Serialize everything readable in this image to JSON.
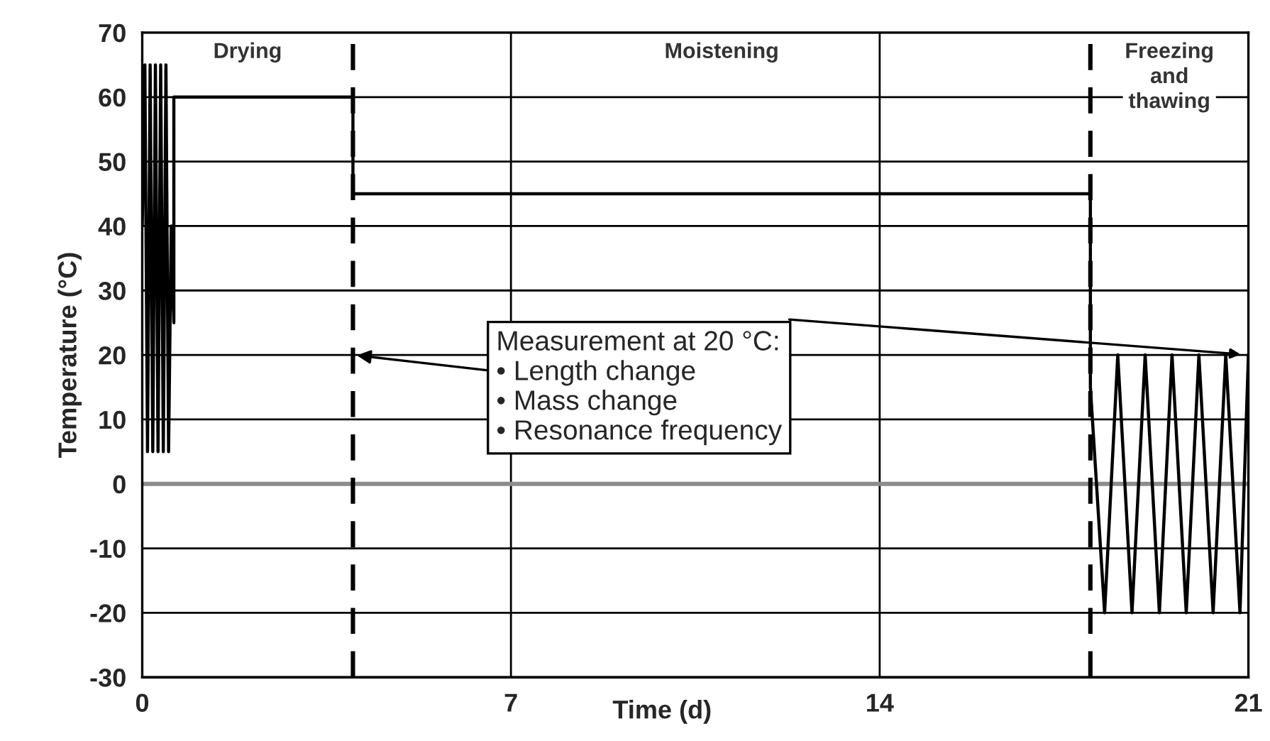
{
  "chart_data": {
    "type": "line",
    "xlabel": "Time (d)",
    "ylabel": "Temperature (°C)",
    "xlim": [
      0,
      21
    ],
    "ylim": [
      -30,
      70
    ],
    "xticks": [
      0,
      7,
      14,
      21
    ],
    "yticks": [
      -30,
      -20,
      -10,
      0,
      10,
      20,
      30,
      40,
      50,
      60,
      70
    ],
    "grid": true,
    "series": [
      {
        "color": "#000000",
        "x": [
          0,
          0.05,
          0.1,
          0.15,
          0.2,
          0.25,
          0.3,
          0.35,
          0.4,
          0.45,
          0.5,
          0.55,
          0.6,
          0.6,
          4,
          4,
          18,
          18,
          18.27,
          18.52,
          18.79,
          19.04,
          19.31,
          19.55,
          19.82,
          20.06,
          20.33,
          20.57,
          20.84,
          21
        ],
        "values": [
          40,
          65,
          5,
          65,
          5,
          65,
          5,
          65,
          5,
          65,
          5,
          40,
          25,
          60,
          60,
          45,
          45,
          15,
          -20,
          20,
          -20,
          20,
          -20,
          20,
          -20,
          20,
          -20,
          20,
          -20,
          20
        ]
      }
    ],
    "ref_lines": [
      {
        "axis": "x",
        "value": 4,
        "color": "#000000",
        "line_style": "dashed"
      },
      {
        "axis": "x",
        "value": 18,
        "color": "#000000",
        "line_style": "dashed"
      },
      {
        "axis": "y",
        "value": 0,
        "color": "#8c8c8c",
        "line_style": "solid"
      }
    ],
    "annotations": [
      "Drying",
      "Moistening",
      "Freezing\nand\nthawing",
      {
        "text": "Measurement at 20 °C:\n• Length change\n• Mass change\n• Resonance frequency",
        "x": 4,
        "y": 20
      }
    ]
  }
}
